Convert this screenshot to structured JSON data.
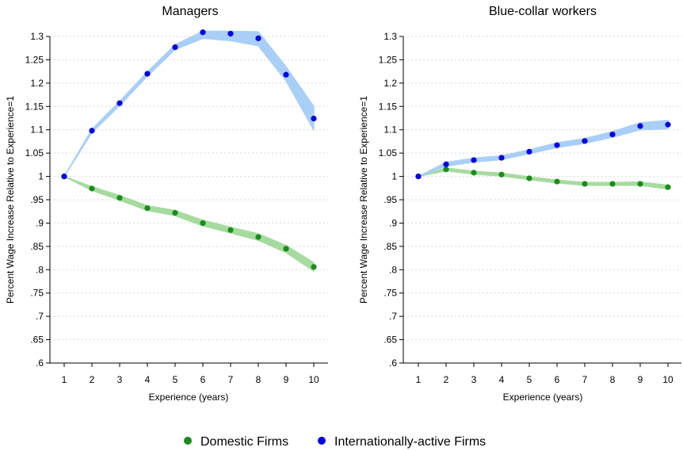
{
  "chart_data": [
    {
      "type": "line",
      "title": "Managers",
      "xlabel": "Experience (years)",
      "ylabel": "Percent Wage Increase Relative to Experience=1",
      "x": [
        1,
        2,
        3,
        4,
        5,
        6,
        7,
        8,
        9,
        10
      ],
      "xticks": [
        "1",
        "2",
        "3",
        "4",
        "5",
        "6",
        "7",
        "8",
        "9",
        "10"
      ],
      "ylim": [
        0.6,
        1.3
      ],
      "yticks": [
        "1.3",
        "1.25",
        "1.2",
        "1.15",
        "1.1",
        "1.05",
        "1",
        ".95",
        ".9",
        ".85",
        ".8",
        ".75",
        ".7",
        ".65",
        ".6"
      ],
      "ytick_values": [
        1.3,
        1.25,
        1.2,
        1.15,
        1.1,
        1.05,
        1.0,
        0.95,
        0.9,
        0.85,
        0.8,
        0.75,
        0.7,
        0.65,
        0.6
      ],
      "grid": true,
      "series": [
        {
          "name": "Domestic Firms",
          "color": "#1a8c1a",
          "band_color": "#a6dba0",
          "values": [
            1.0,
            0.974,
            0.954,
            0.932,
            0.922,
            0.9,
            0.885,
            0.87,
            0.845,
            0.806
          ],
          "lower": [
            1.0,
            0.97,
            0.949,
            0.927,
            0.916,
            0.894,
            0.879,
            0.863,
            0.837,
            0.797
          ],
          "upper": [
            1.0,
            0.978,
            0.959,
            0.937,
            0.927,
            0.906,
            0.891,
            0.877,
            0.852,
            0.815
          ]
        },
        {
          "name": "Internationally-active Firms",
          "color": "#0000e0",
          "band_color": "#a9cff7",
          "values": [
            1.0,
            1.098,
            1.157,
            1.22,
            1.277,
            1.309,
            1.306,
            1.296,
            1.218,
            1.124
          ],
          "lower": [
            1.0,
            1.094,
            1.152,
            1.215,
            1.272,
            1.296,
            1.291,
            1.28,
            1.205,
            1.1
          ],
          "upper": [
            1.0,
            1.101,
            1.161,
            1.224,
            1.282,
            1.311,
            1.311,
            1.31,
            1.235,
            1.15
          ]
        }
      ]
    },
    {
      "type": "line",
      "title": "Blue-collar workers",
      "xlabel": "Experience (years)",
      "ylabel": "Percent Wage Increase Relative to Experience=1",
      "x": [
        1,
        2,
        3,
        4,
        5,
        6,
        7,
        8,
        9,
        10
      ],
      "xticks": [
        "1",
        "2",
        "3",
        "4",
        "5",
        "6",
        "7",
        "8",
        "9",
        "10"
      ],
      "ylim": [
        0.6,
        1.3
      ],
      "yticks": [
        "1.3",
        "1.25",
        "1.2",
        "1.15",
        "1.1",
        "1.05",
        "1",
        ".95",
        ".9",
        ".85",
        ".8",
        ".75",
        ".7",
        ".65",
        ".6"
      ],
      "ytick_values": [
        1.3,
        1.25,
        1.2,
        1.15,
        1.1,
        1.05,
        1.0,
        0.95,
        0.9,
        0.85,
        0.8,
        0.75,
        0.7,
        0.65,
        0.6
      ],
      "grid": true,
      "series": [
        {
          "name": "Domestic Firms",
          "color": "#1a8c1a",
          "band_color": "#a6dba0",
          "values": [
            1.0,
            1.015,
            1.008,
            1.004,
            0.996,
            0.989,
            0.984,
            0.984,
            0.984,
            0.977
          ],
          "lower": [
            1.0,
            1.012,
            1.005,
            1.001,
            0.993,
            0.986,
            0.981,
            0.981,
            0.981,
            0.973
          ],
          "upper": [
            1.0,
            1.018,
            1.011,
            1.007,
            0.999,
            0.992,
            0.987,
            0.987,
            0.988,
            0.981
          ]
        },
        {
          "name": "Internationally-active Firms",
          "color": "#0000e0",
          "band_color": "#a9cff7",
          "values": [
            1.0,
            1.026,
            1.035,
            1.04,
            1.053,
            1.067,
            1.076,
            1.09,
            1.108,
            1.111
          ],
          "lower": [
            1.0,
            1.022,
            1.031,
            1.036,
            1.049,
            1.062,
            1.071,
            1.084,
            1.1,
            1.102
          ],
          "upper": [
            1.0,
            1.03,
            1.039,
            1.044,
            1.057,
            1.072,
            1.081,
            1.096,
            1.115,
            1.12
          ]
        }
      ]
    }
  ],
  "legend": {
    "placement": "bottom-center",
    "items": [
      {
        "label": "Domestic Firms",
        "color": "#1a8c1a"
      },
      {
        "label": "Internationally-active Firms",
        "color": "#0000e0"
      }
    ]
  }
}
